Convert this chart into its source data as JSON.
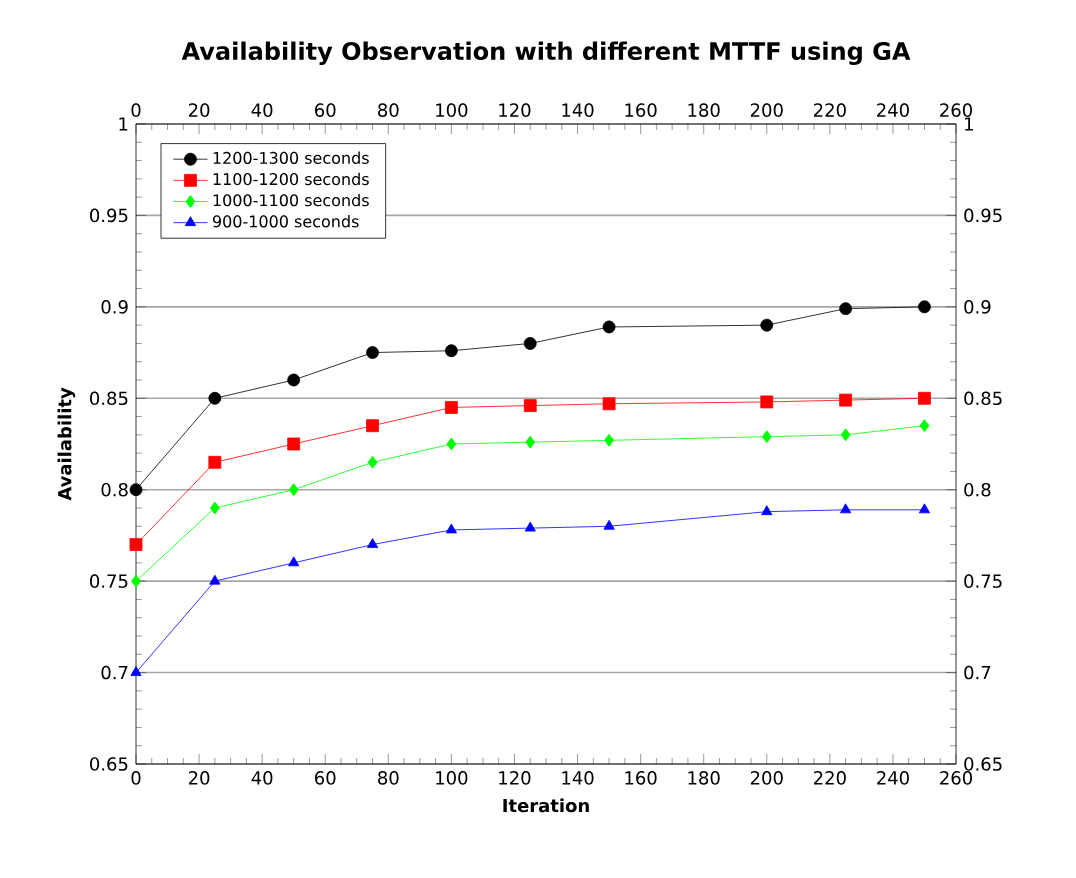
{
  "chart_data": {
    "type": "line",
    "title": "Availability Observation with different MTTF using GA",
    "xlabel": "Iteration",
    "ylabel": "Availability",
    "x": [
      0,
      25,
      50,
      75,
      100,
      125,
      150,
      200,
      225,
      250
    ],
    "series": [
      {
        "name": "1200-1300 seconds",
        "color": "#000000",
        "marker": "circle",
        "values": [
          0.8,
          0.85,
          0.86,
          0.875,
          0.876,
          0.88,
          0.889,
          0.89,
          0.899,
          0.9
        ]
      },
      {
        "name": "1100-1200 seconds",
        "color": "#ff0000",
        "marker": "square",
        "values": [
          0.77,
          0.815,
          0.825,
          0.835,
          0.845,
          0.846,
          0.847,
          0.848,
          0.849,
          0.85
        ]
      },
      {
        "name": "1000-1100 seconds",
        "color": "#00ff00",
        "marker": "diamond",
        "values": [
          0.75,
          0.79,
          0.8,
          0.815,
          0.825,
          0.826,
          0.827,
          0.829,
          0.83,
          0.835
        ]
      },
      {
        "name": "900-1000 seconds",
        "color": "#0000ff",
        "marker": "triangle",
        "values": [
          0.7,
          0.75,
          0.76,
          0.77,
          0.778,
          0.779,
          0.78,
          0.788,
          0.789,
          0.789
        ]
      }
    ],
    "xlim": [
      0,
      260
    ],
    "xticks": [
      0,
      20,
      40,
      60,
      80,
      100,
      120,
      140,
      160,
      180,
      200,
      220,
      240,
      260
    ],
    "x2lim": [
      0,
      260
    ],
    "x2ticks": [
      0,
      20,
      40,
      60,
      80,
      100,
      120,
      140,
      160,
      180,
      200,
      220,
      240,
      260
    ],
    "ylim": [
      0.65,
      1
    ],
    "yticks": [
      0.65,
      0.7,
      0.75,
      0.8,
      0.85,
      0.9,
      0.95,
      1
    ],
    "y2lim": [
      0.65,
      1
    ],
    "y2ticks": [
      0.65,
      0.7,
      0.75,
      0.8,
      0.85,
      0.9,
      0.95,
      1
    ],
    "grid": "y",
    "legend": "top left",
    "line_style": "solid"
  }
}
